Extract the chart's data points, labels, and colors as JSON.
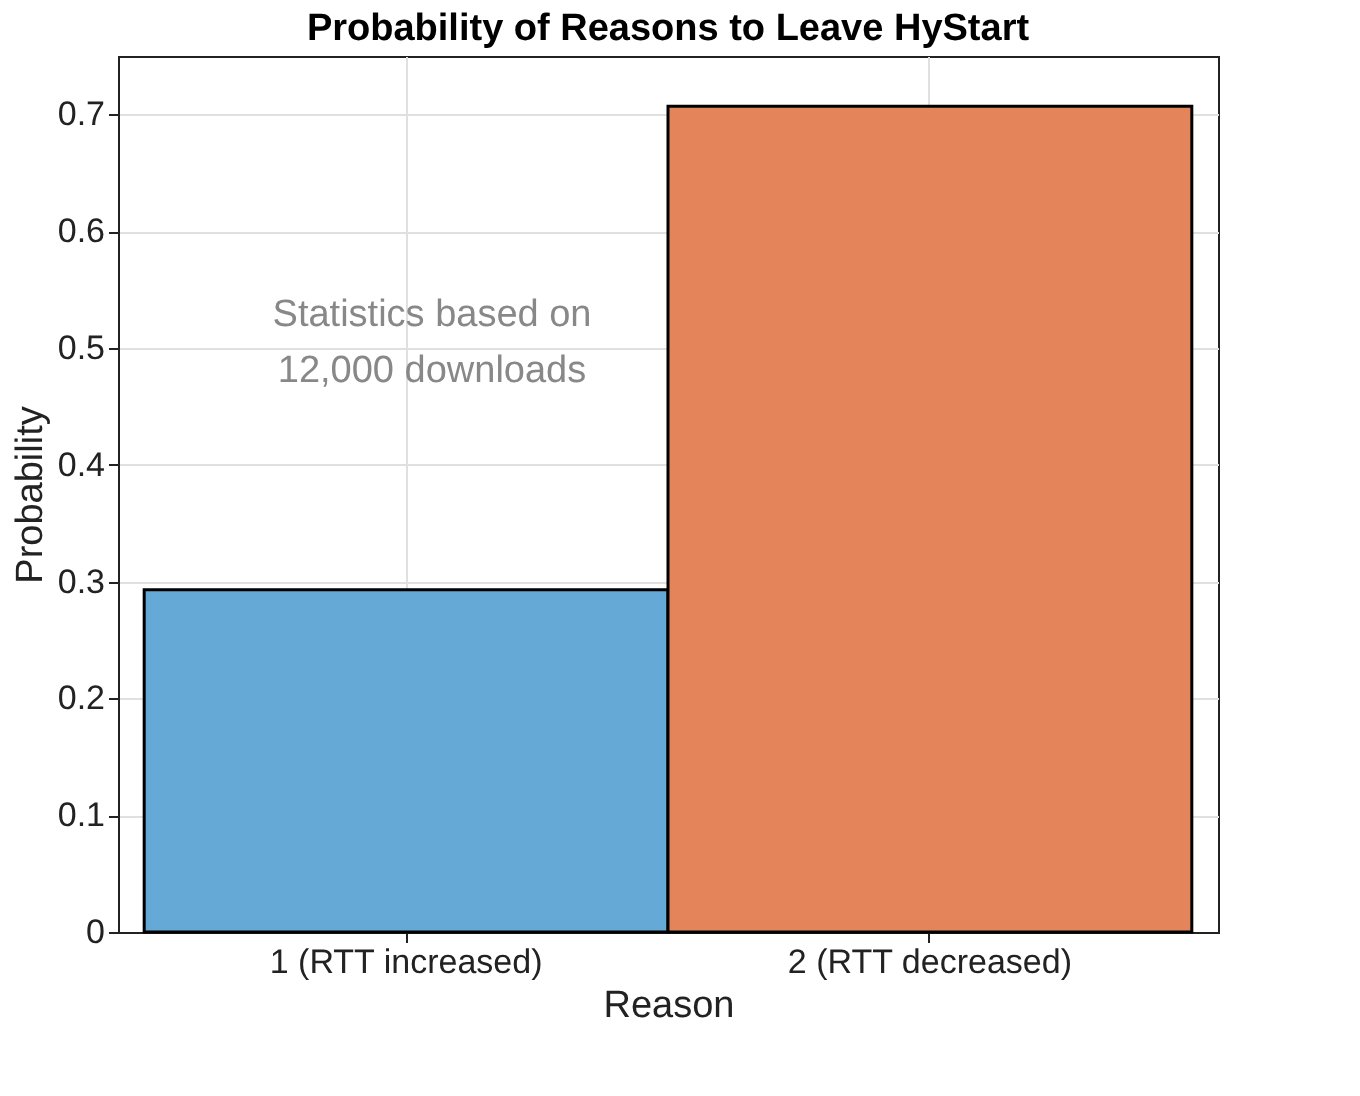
{
  "chart_data": {
    "type": "bar",
    "title": "Probability of Reasons to Leave HyStart",
    "xlabel": "Reason",
    "ylabel": "Probability",
    "categories": [
      "1 (RTT increased)",
      "2 (RTT decreased)"
    ],
    "values": [
      0.293,
      0.707
    ],
    "colors": [
      "#65a9d7",
      "#e3845a"
    ],
    "ylim": [
      0,
      0.75
    ],
    "yticks": [
      {
        "value": 0,
        "label": "0"
      },
      0.1,
      0.2,
      0.3,
      0.4,
      0.5,
      0.6,
      0.7
    ],
    "grid": true,
    "annotations": [
      "Statistics based on\n12,000 downloads"
    ]
  }
}
